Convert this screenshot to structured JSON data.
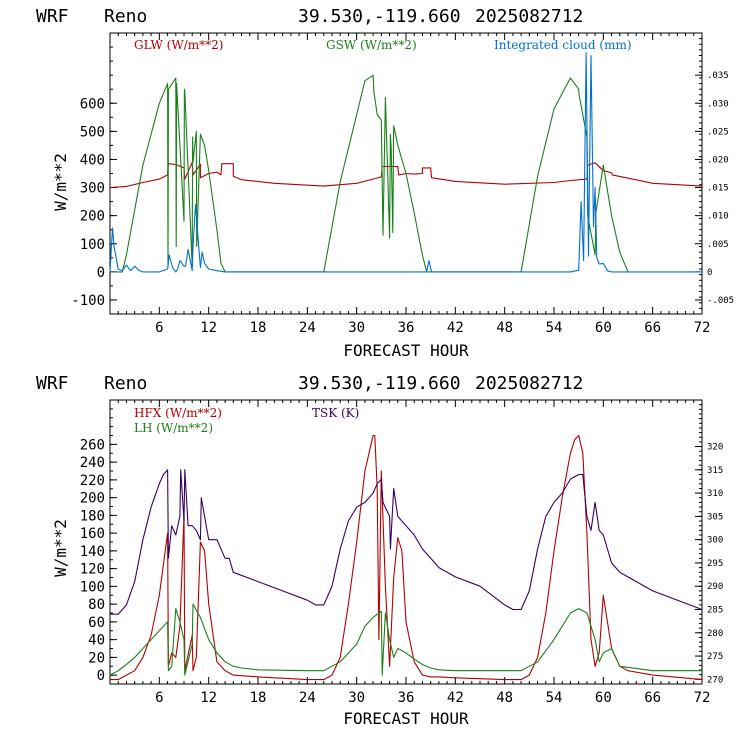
{
  "header": {
    "model": "WRF",
    "site": "Reno",
    "coords": "39.530,-119.660",
    "date": "2025082712"
  },
  "colors": {
    "red": "#b30000",
    "green": "#1a801a",
    "blue": "#0070d0",
    "purple": "#3a0060"
  },
  "chart_data": [
    {
      "type": "line",
      "xlabel": "FORECAST HOUR",
      "ylabel": "W/m**2",
      "xlim": [
        0,
        72
      ],
      "ylim": [
        -150,
        850
      ],
      "y2lim": [
        -0.0075,
        0.0425
      ],
      "xticks": [
        "6",
        "12",
        "18",
        "24",
        "30",
        "36",
        "42",
        "48",
        "54",
        "60",
        "66",
        "72"
      ],
      "yticks": [
        "-100",
        "0",
        "100",
        "200",
        "300",
        "400",
        "500",
        "600"
      ],
      "y2ticks": [
        "-.005",
        "0",
        ".005",
        ".010",
        ".015",
        ".020",
        ".025",
        ".030",
        ".035"
      ],
      "series": [
        {
          "name": "GLW (W/m**2)",
          "axis": "left",
          "color": "#b30000",
          "x": [
            0,
            2,
            4,
            6,
            7,
            7.1,
            8,
            9,
            9.1,
            10,
            10.1,
            11,
            11,
            12,
            13,
            13.5,
            13.6,
            15,
            15,
            16,
            20,
            26,
            30,
            32,
            33,
            33.1,
            35,
            35.1,
            36,
            37,
            38,
            38,
            39,
            39.1,
            42,
            48,
            54,
            56,
            58,
            58.1,
            59,
            60,
            61,
            61.1,
            66,
            72
          ],
          "y": [
            300,
            304,
            318,
            330,
            345,
            385,
            382,
            370,
            330,
            390,
            345,
            383,
            335,
            350,
            355,
            345,
            385,
            385,
            340,
            328,
            315,
            305,
            315,
            330,
            338,
            375,
            375,
            345,
            350,
            348,
            350,
            370,
            370,
            335,
            322,
            312,
            318,
            325,
            330,
            380,
            388,
            360,
            352,
            345,
            315,
            305
          ]
        },
        {
          "name": "GSW (W/m**2)",
          "axis": "left",
          "color": "#1a801a",
          "x": [
            0,
            1.5,
            2,
            4,
            6,
            7,
            7.05,
            7.1,
            8,
            8.05,
            8.1,
            9,
            9.05,
            9.1,
            10,
            10.05,
            10.1,
            10.5,
            10.55,
            11,
            11.5,
            12,
            13,
            13.5,
            14,
            26,
            28,
            30,
            31,
            32,
            32.1,
            32.5,
            33,
            33.2,
            33.5,
            34,
            34.1,
            34.2,
            34.4,
            34.5,
            35,
            36,
            37,
            38,
            38.5,
            50,
            52,
            54,
            56,
            57,
            57.05,
            58,
            58.1,
            59,
            59.1,
            60,
            61,
            62,
            63
          ],
          "y": [
            0,
            0,
            60,
            380,
            600,
            670,
            15,
            650,
            690,
            90,
            670,
            180,
            650,
            640,
            20,
            480,
            390,
            500,
            90,
            490,
            450,
            360,
            150,
            30,
            0,
            0,
            320,
            560,
            680,
            700,
            640,
            560,
            540,
            130,
            620,
            120,
            490,
            440,
            140,
            520,
            450,
            350,
            210,
            60,
            0,
            0,
            340,
            580,
            690,
            650,
            630,
            480,
            200,
            60,
            210,
            380,
            200,
            70,
            0
          ]
        },
        {
          "name": "Integrated cloud (mm)",
          "axis": "right",
          "color": "#0070d0",
          "x": [
            0,
            0.3,
            0.5,
            1,
            1.5,
            2,
            2.5,
            3,
            3.5,
            4,
            6,
            7,
            7.2,
            7.6,
            8,
            8.2,
            8.5,
            9,
            9.2,
            9.5,
            10,
            10.1,
            10.4,
            10.6,
            11,
            11.2,
            11.5,
            12,
            13,
            14,
            14.2,
            24,
            38.5,
            38.8,
            39.1,
            56,
            57,
            57.3,
            57.6,
            57.9,
            58.2,
            58.5,
            58.8,
            59,
            59.2,
            59.5,
            60,
            60.5,
            61,
            72
          ],
          "y": [
            0,
            0.0078,
            0.0045,
            0.0005,
            0.0002,
            0.0012,
            0.0002,
            0.001,
            0.0003,
            0,
            0,
            0.0005,
            0.003,
            0.0008,
            0,
            0.0004,
            0.002,
            0.001,
            0.001,
            0.004,
            0.0002,
            0.0045,
            0.012,
            0.008,
            0.0008,
            0.0035,
            0.0015,
            0.0005,
            0.0002,
            0,
            0,
            0,
            0,
            0.002,
            0,
            0,
            0.0003,
            0.0125,
            0.002,
            0.039,
            0.0028,
            0.0385,
            0.008,
            0.015,
            0.0025,
            0.0014,
            0.0015,
            0.0002,
            0,
            0
          ]
        }
      ]
    },
    {
      "type": "line",
      "xlabel": "FORECAST HOUR",
      "ylabel": "W/m**2",
      "xlim": [
        0,
        72
      ],
      "ylim": [
        -10,
        310
      ],
      "y2lim": [
        269,
        330
      ],
      "xticks": [
        "6",
        "12",
        "18",
        "24",
        "30",
        "36",
        "42",
        "48",
        "54",
        "60",
        "66",
        "72"
      ],
      "yticks": [
        "0",
        "20",
        "40",
        "60",
        "80",
        "100",
        "120",
        "140",
        "160",
        "180",
        "200",
        "220",
        "240",
        "260"
      ],
      "y2ticks": [
        "270",
        "275",
        "280",
        "285",
        "290",
        "295",
        "300",
        "305",
        "310",
        "315",
        "320"
      ],
      "series": [
        {
          "name": "HFX (W/m**2)",
          "axis": "left",
          "color": "#b30000",
          "x": [
            0,
            1,
            2,
            3,
            4,
            5,
            6,
            7,
            7.1,
            7.5,
            8,
            8.5,
            9,
            9.1,
            10,
            10.1,
            10.5,
            11,
            11.5,
            12,
            13,
            14,
            15,
            18,
            24,
            26,
            27,
            28,
            29,
            30,
            31,
            32,
            32.2,
            32.5,
            32.7,
            33,
            33.5,
            34,
            34.5,
            35,
            35.5,
            36,
            37,
            38,
            39,
            40,
            42,
            48,
            50,
            51,
            52,
            53,
            54,
            55,
            56,
            56.5,
            57,
            57.5,
            58,
            58.5,
            59,
            59.5,
            60,
            61,
            62,
            63,
            66,
            72
          ],
          "y": [
            -5,
            -5,
            0,
            5,
            20,
            45,
            90,
            160,
            10,
            25,
            20,
            55,
            180,
            5,
            45,
            5,
            20,
            150,
            140,
            80,
            15,
            5,
            0,
            -2,
            -5,
            -5,
            0,
            20,
            80,
            150,
            230,
            270,
            270,
            210,
            40,
            230,
            100,
            10,
            110,
            155,
            140,
            60,
            15,
            0,
            -2,
            -2,
            -3,
            -5,
            -5,
            0,
            20,
            70,
            140,
            200,
            250,
            265,
            270,
            250,
            160,
            40,
            10,
            25,
            90,
            30,
            10,
            5,
            0,
            -5
          ]
        },
        {
          "name": "LH  (W/m**2)",
          "axis": "left",
          "color": "#1a801a",
          "x": [
            0,
            1,
            2,
            3,
            4,
            5,
            6,
            7,
            7.1,
            7.5,
            8,
            8.5,
            9,
            9.1,
            10,
            10.1,
            11,
            12,
            13,
            14,
            15,
            16,
            18,
            24,
            26,
            28,
            30,
            31,
            32,
            33,
            33.1,
            33.5,
            34,
            34.5,
            35,
            36,
            37,
            38,
            39,
            40,
            42,
            48,
            50,
            52,
            54,
            55,
            56,
            57,
            58,
            59,
            59.5,
            60,
            61,
            62,
            66,
            72
          ],
          "y": [
            0,
            5,
            12,
            20,
            30,
            40,
            50,
            60,
            5,
            10,
            75,
            60,
            40,
            0,
            35,
            80,
            65,
            40,
            25,
            15,
            10,
            8,
            6,
            5,
            5,
            15,
            35,
            55,
            65,
            72,
            0,
            70,
            40,
            20,
            30,
            25,
            18,
            12,
            8,
            6,
            5,
            5,
            5,
            15,
            40,
            55,
            70,
            75,
            70,
            40,
            15,
            25,
            30,
            10,
            5,
            5
          ]
        },
        {
          "name": "TSK (K)",
          "axis": "right",
          "color": "#3a0060",
          "x": [
            0,
            1,
            2,
            3,
            4,
            5,
            6,
            6.5,
            7,
            7.1,
            7.5,
            8,
            8.5,
            8.6,
            9,
            9.1,
            9.5,
            10,
            10.5,
            11,
            11.1,
            12,
            13,
            14,
            14.5,
            15,
            18,
            21,
            24,
            25,
            26,
            27,
            28,
            29,
            30,
            31,
            32,
            32.5,
            33,
            33.2,
            34,
            34.1,
            34.5,
            35,
            36,
            37,
            38,
            39,
            40,
            42,
            45,
            48,
            49,
            50,
            51,
            52,
            53,
            54,
            55,
            56,
            57,
            57.5,
            58,
            58.5,
            59,
            59.5,
            60,
            61,
            62,
            63,
            66,
            72
          ],
          "y": [
            284,
            284,
            286,
            291,
            300,
            307,
            312,
            314,
            315,
            296,
            303,
            301,
            305,
            315,
            304,
            315,
            303,
            303,
            302,
            300,
            309,
            300,
            300,
            296,
            296,
            293,
            291,
            289,
            287,
            286,
            286,
            290,
            298,
            304,
            307,
            308,
            310,
            312,
            313,
            308,
            305,
            298,
            311,
            305,
            303,
            301,
            298,
            296,
            294,
            292,
            290,
            286,
            285,
            285,
            289,
            298,
            305,
            308,
            310,
            313,
            314,
            314,
            305,
            302,
            308,
            302,
            301,
            295,
            293,
            292,
            289,
            285
          ]
        }
      ]
    }
  ]
}
